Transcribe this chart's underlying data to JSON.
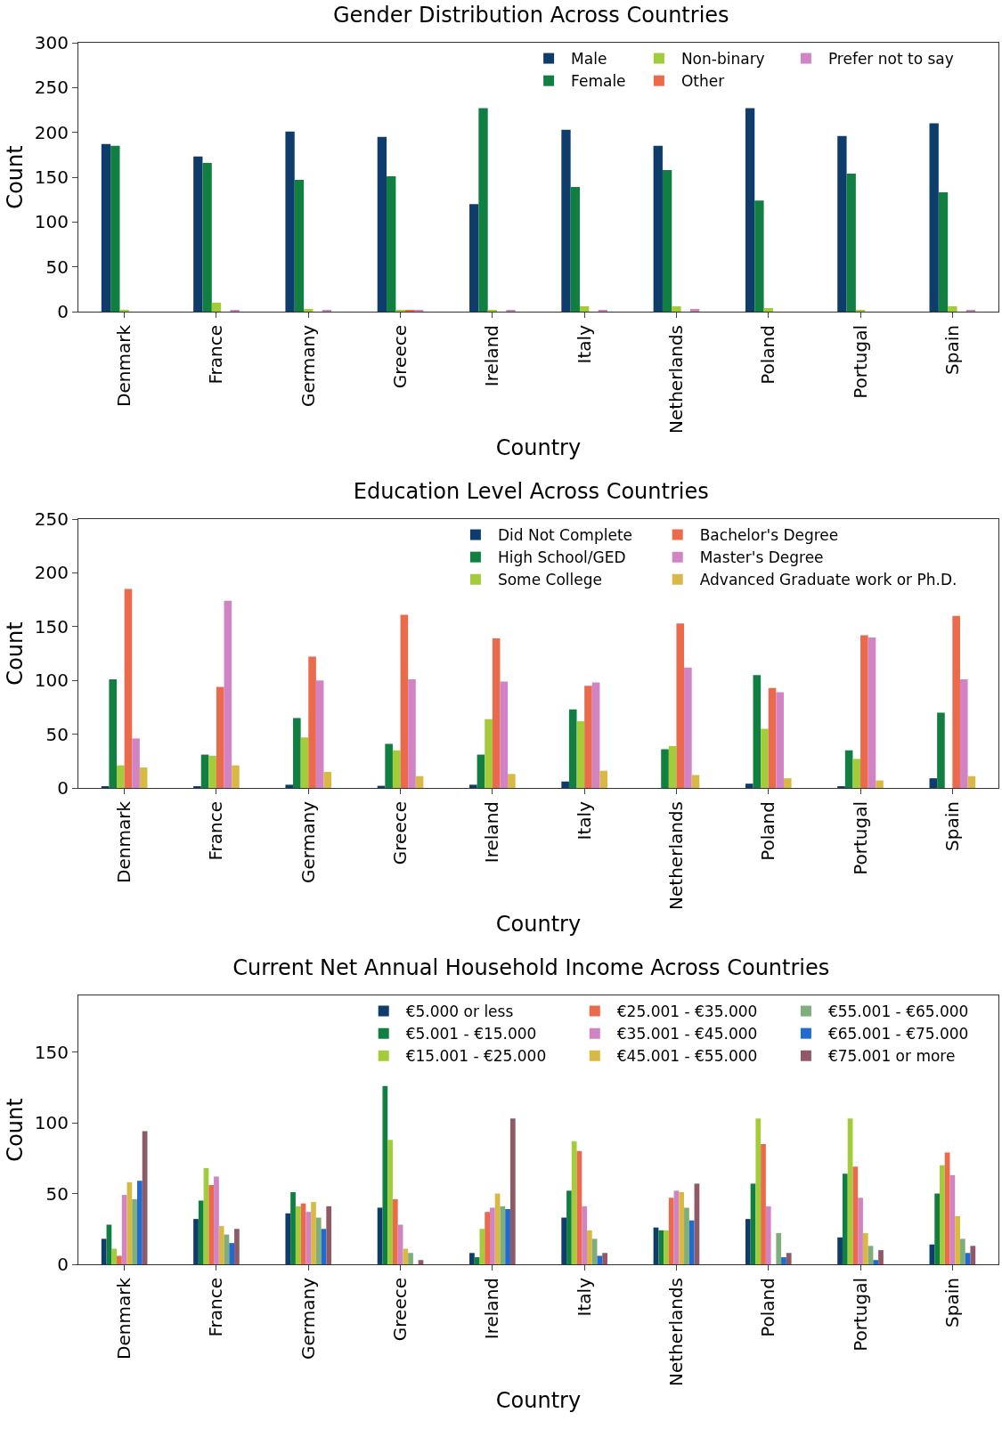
{
  "chart_data": [
    {
      "type": "bar",
      "title": "Gender Distribution Across Countries",
      "xlabel": "Country",
      "ylabel": "Count",
      "categories": [
        "Denmark",
        "France",
        "Germany",
        "Greece",
        "Ireland",
        "Italy",
        "Netherlands",
        "Poland",
        "Portugal",
        "Spain"
      ],
      "ylim": [
        0,
        300
      ],
      "yticks": [
        0,
        50,
        100,
        150,
        200,
        250,
        300
      ],
      "grid": false,
      "legend": "top right",
      "series": [
        {
          "name": "Male",
          "color": "#0f3d6b",
          "values": [
            187,
            173,
            201,
            195,
            120,
            203,
            185,
            227,
            196,
            210
          ]
        },
        {
          "name": "Female",
          "color": "#117f41",
          "values": [
            185,
            166,
            147,
            151,
            227,
            139,
            158,
            124,
            154,
            133
          ]
        },
        {
          "name": "Non-binary",
          "color": "#a3cc3a",
          "values": [
            1,
            10,
            3,
            2,
            2,
            6,
            6,
            4,
            2,
            6
          ]
        },
        {
          "name": "Other",
          "color": "#ec6a4c",
          "values": [
            0,
            0,
            0,
            2,
            0,
            0,
            0,
            0,
            0,
            0
          ]
        },
        {
          "name": "Prefer not to say",
          "color": "#d084c4",
          "values": [
            0,
            1,
            1,
            1,
            1,
            1,
            3,
            0,
            0,
            2
          ]
        }
      ]
    },
    {
      "type": "bar",
      "title": "Education Level Across Countries",
      "xlabel": "Country",
      "ylabel": "Count",
      "categories": [
        "Denmark",
        "France",
        "Germany",
        "Greece",
        "Ireland",
        "Italy",
        "Netherlands",
        "Poland",
        "Portugal",
        "Spain"
      ],
      "ylim": [
        0,
        250
      ],
      "yticks": [
        0,
        50,
        100,
        150,
        200,
        250
      ],
      "grid": false,
      "legend": "top right",
      "series": [
        {
          "name": "Did Not Complete",
          "color": "#0f3d6b",
          "values": [
            1,
            1,
            3,
            2,
            3,
            6,
            0,
            4,
            1,
            9
          ]
        },
        {
          "name": "High School/GED",
          "color": "#117f41",
          "values": [
            101,
            31,
            65,
            41,
            31,
            73,
            36,
            105,
            35,
            70
          ]
        },
        {
          "name": "Some College",
          "color": "#a3cc3a",
          "values": [
            21,
            30,
            47,
            35,
            64,
            62,
            39,
            55,
            27,
            0
          ]
        },
        {
          "name": "Bachelor's Degree",
          "color": "#ec6a4c",
          "values": [
            185,
            94,
            122,
            161,
            139,
            95,
            153,
            93,
            142,
            160
          ]
        },
        {
          "name": "Master's Degree",
          "color": "#d084c4",
          "values": [
            46,
            174,
            100,
            101,
            99,
            98,
            112,
            89,
            140,
            101
          ]
        },
        {
          "name": "Advanced Graduate work or Ph.D.",
          "color": "#d9b945",
          "values": [
            19,
            21,
            15,
            11,
            13,
            16,
            12,
            9,
            7,
            11
          ]
        }
      ]
    },
    {
      "type": "bar",
      "title": "Current Net Annual Household Income Across Countries",
      "xlabel": "Country",
      "ylabel": "Count",
      "categories": [
        "Denmark",
        "France",
        "Germany",
        "Greece",
        "Ireland",
        "Italy",
        "Netherlands",
        "Poland",
        "Portugal",
        "Spain"
      ],
      "ylim": [
        0,
        190
      ],
      "yticks": [
        0,
        50,
        100,
        150
      ],
      "grid": false,
      "legend": "top right",
      "series": [
        {
          "name": "€5.000 or less",
          "color": "#0f3d6b",
          "values": [
            18,
            32,
            36,
            40,
            8,
            33,
            26,
            32,
            19,
            14
          ]
        },
        {
          "name": "€5.001 - €15.000",
          "color": "#117f41",
          "values": [
            28,
            45,
            51,
            126,
            5,
            52,
            24,
            57,
            64,
            50
          ]
        },
        {
          "name": "€15.001 - €25.000",
          "color": "#a3cc3a",
          "values": [
            11,
            68,
            41,
            88,
            25,
            87,
            24,
            103,
            103,
            70
          ]
        },
        {
          "name": "€25.001 - €35.000",
          "color": "#ec6a4c",
          "values": [
            6,
            56,
            43,
            46,
            37,
            80,
            47,
            85,
            69,
            79
          ]
        },
        {
          "name": "€35.001 - €45.000",
          "color": "#d084c4",
          "values": [
            49,
            62,
            37,
            28,
            40,
            41,
            52,
            41,
            47,
            63
          ]
        },
        {
          "name": "€45.001 - €55.000",
          "color": "#d9b945",
          "values": [
            58,
            27,
            44,
            11,
            50,
            24,
            51,
            0,
            22,
            34
          ]
        },
        {
          "name": "€55.001 - €65.000",
          "color": "#7fae7c",
          "values": [
            46,
            21,
            33,
            8,
            41,
            18,
            40,
            22,
            13,
            18
          ]
        },
        {
          "name": "€65.001 - €75.000",
          "color": "#1f6bd1",
          "values": [
            59,
            15,
            25,
            0,
            39,
            6,
            31,
            5,
            3,
            8
          ]
        },
        {
          "name": "€75.001 or more",
          "color": "#8f5a66",
          "values": [
            94,
            25,
            41,
            3,
            103,
            8,
            57,
            8,
            10,
            13
          ]
        }
      ]
    }
  ]
}
